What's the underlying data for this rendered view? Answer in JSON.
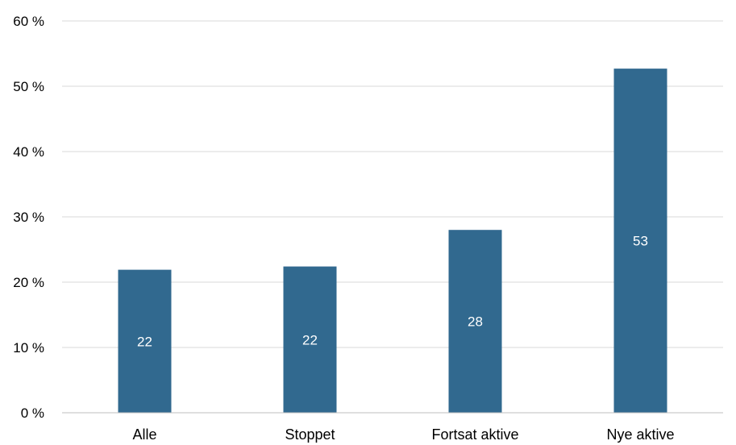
{
  "chart_data": {
    "type": "bar",
    "categories": [
      "Alle",
      "Stoppet",
      "Fortsat aktive",
      "Nye aktive"
    ],
    "values": [
      21.9,
      22.4,
      28.0,
      52.7
    ],
    "data_labels": [
      "22",
      "22",
      "28",
      "53"
    ],
    "ylim": [
      0,
      60
    ],
    "yticks": [
      0,
      10,
      20,
      30,
      40,
      50,
      60
    ],
    "ytick_labels": [
      "0 %",
      "10 %",
      "20 %",
      "30 %",
      "40 %",
      "50 %",
      "60 %"
    ],
    "grid": true,
    "legend": "none",
    "colors": {
      "bar": "#31698F",
      "grid": "#D9D9D9",
      "axis": "#BFBFBF"
    }
  }
}
